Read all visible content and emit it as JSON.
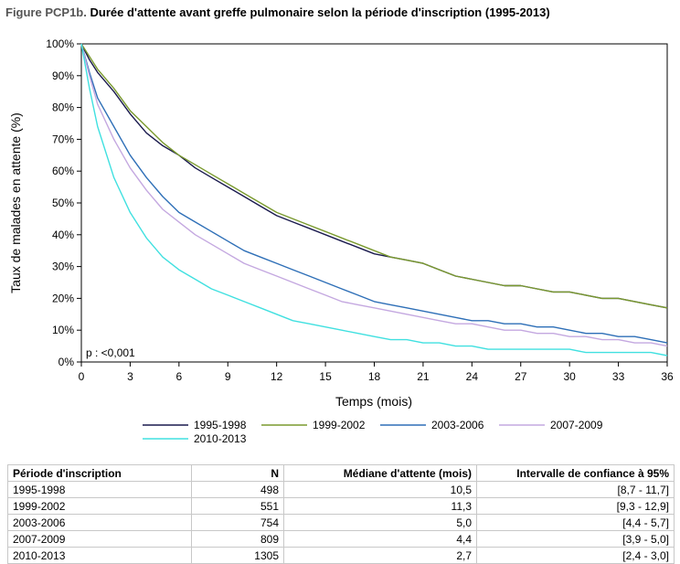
{
  "figure": {
    "label": "Figure PCP1b.",
    "title": "Durée d'attente avant greffe pulmonaire selon la période d'inscription (1995-2013)"
  },
  "chart_data": {
    "type": "line",
    "title": "Durée d'attente avant greffe pulmonaire selon la période d'inscription (1995-2013)",
    "xlabel": "Temps (mois)",
    "ylabel": "Taux de malades en attente (%)",
    "xlim": [
      0,
      36
    ],
    "ylim": [
      0,
      100
    ],
    "xticks": [
      0,
      3,
      6,
      9,
      12,
      15,
      18,
      21,
      24,
      27,
      30,
      33,
      36
    ],
    "xtick_labels": [
      "0",
      "3",
      "6",
      "9",
      "12",
      "15",
      "18",
      "21",
      "24",
      "27",
      "30",
      "33",
      "36"
    ],
    "yticks": [
      0,
      10,
      20,
      30,
      40,
      50,
      60,
      70,
      80,
      90,
      100
    ],
    "ytick_labels": [
      "0%",
      "10%",
      "20%",
      "30%",
      "40%",
      "50%",
      "60%",
      "70%",
      "80%",
      "90%",
      "100%"
    ],
    "annotation": "p : <0,001",
    "grid": false,
    "legend_position": "bottom",
    "series": [
      {
        "name": "1995-1998",
        "color": "#1a1a4e",
        "x": [
          0,
          0.5,
          1,
          2,
          3,
          4,
          5,
          6,
          7,
          8,
          9,
          10,
          11,
          12,
          13,
          14,
          15,
          16,
          17,
          18,
          19,
          20,
          21,
          22,
          23,
          24,
          25,
          26,
          27,
          28,
          29,
          30,
          31,
          32,
          33,
          34,
          35,
          36
        ],
        "y": [
          100,
          95,
          91,
          85,
          78,
          72,
          68,
          65,
          61,
          58,
          55,
          52,
          49,
          46,
          44,
          42,
          40,
          38,
          36,
          34,
          33,
          32,
          31,
          29,
          27,
          26,
          25,
          24,
          24,
          23,
          22,
          22,
          21,
          20,
          20,
          19,
          18,
          17
        ]
      },
      {
        "name": "1999-2002",
        "color": "#7a9a2e",
        "x": [
          0,
          0.5,
          1,
          2,
          3,
          4,
          5,
          6,
          7,
          8,
          9,
          10,
          11,
          12,
          13,
          14,
          15,
          16,
          17,
          18,
          19,
          20,
          21,
          22,
          23,
          24,
          25,
          26,
          27,
          28,
          29,
          30,
          31,
          32,
          33,
          34,
          35,
          36
        ],
        "y": [
          100,
          96,
          92,
          86,
          79,
          74,
          69,
          65,
          62,
          59,
          56,
          53,
          50,
          47,
          45,
          43,
          41,
          39,
          37,
          35,
          33,
          32,
          31,
          29,
          27,
          26,
          25,
          24,
          24,
          23,
          22,
          22,
          21,
          20,
          20,
          19,
          18,
          17
        ]
      },
      {
        "name": "2003-2006",
        "color": "#2e6fb7",
        "x": [
          0,
          0.5,
          1,
          2,
          3,
          4,
          5,
          6,
          7,
          8,
          9,
          10,
          11,
          12,
          13,
          14,
          15,
          16,
          17,
          18,
          19,
          20,
          21,
          22,
          23,
          24,
          25,
          26,
          27,
          28,
          29,
          30,
          31,
          32,
          33,
          34,
          35,
          36
        ],
        "y": [
          100,
          91,
          83,
          74,
          65,
          58,
          52,
          47,
          44,
          41,
          38,
          35,
          33,
          31,
          29,
          27,
          25,
          23,
          21,
          19,
          18,
          17,
          16,
          15,
          14,
          13,
          13,
          12,
          12,
          11,
          11,
          10,
          9,
          9,
          8,
          8,
          7,
          6
        ]
      },
      {
        "name": "2007-2009",
        "color": "#c4a8e0",
        "x": [
          0,
          0.5,
          1,
          2,
          3,
          4,
          5,
          6,
          7,
          8,
          9,
          10,
          11,
          12,
          13,
          14,
          15,
          16,
          17,
          18,
          19,
          20,
          21,
          22,
          23,
          24,
          25,
          26,
          27,
          28,
          29,
          30,
          31,
          32,
          33,
          34,
          35,
          36
        ],
        "y": [
          100,
          90,
          81,
          70,
          61,
          54,
          48,
          44,
          40,
          37,
          34,
          31,
          29,
          27,
          25,
          23,
          21,
          19,
          18,
          17,
          16,
          15,
          14,
          13,
          12,
          12,
          11,
          10,
          10,
          9,
          9,
          8,
          8,
          7,
          7,
          6,
          6,
          5
        ]
      },
      {
        "name": "2010-2013",
        "color": "#40e0e0",
        "x": [
          0,
          0.5,
          1,
          2,
          3,
          4,
          5,
          6,
          7,
          8,
          9,
          10,
          11,
          12,
          13,
          14,
          15,
          16,
          17,
          18,
          19,
          20,
          21,
          22,
          23,
          24,
          25,
          26,
          27,
          28,
          29,
          30,
          31,
          32,
          33,
          34,
          35,
          36
        ],
        "y": [
          100,
          86,
          74,
          58,
          47,
          39,
          33,
          29,
          26,
          23,
          21,
          19,
          17,
          15,
          13,
          12,
          11,
          10,
          9,
          8,
          7,
          7,
          6,
          6,
          5,
          5,
          4,
          4,
          4,
          4,
          4,
          4,
          3,
          3,
          3,
          3,
          3,
          2
        ]
      }
    ]
  },
  "table": {
    "headers": [
      "Période d'inscription",
      "N",
      "Médiane d'attente (mois)",
      "Intervalle de confiance à 95%"
    ],
    "rows": [
      [
        "1995-1998",
        "498",
        "10,5",
        "[8,7 - 11,7]"
      ],
      [
        "1999-2002",
        "551",
        "11,3",
        "[9,3 - 12,9]"
      ],
      [
        "2003-2006",
        "754",
        "5,0",
        "[4,4 - 5,7]"
      ],
      [
        "2007-2009",
        "809",
        "4,4",
        "[3,9 - 5,0]"
      ],
      [
        "2010-2013",
        "1305",
        "2,7",
        "[2,4 - 3,0]"
      ]
    ]
  }
}
